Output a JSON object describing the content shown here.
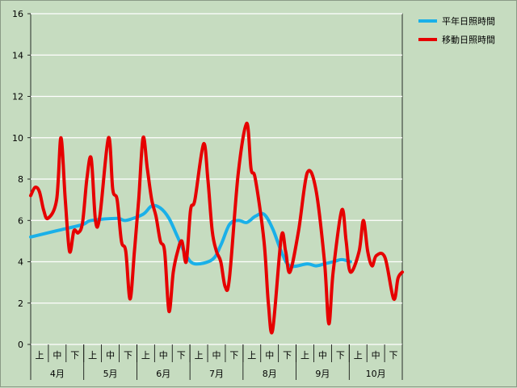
{
  "chart_data": {
    "type": "line",
    "ylim": [
      0,
      16
    ],
    "yticks": [
      "0",
      "2",
      "4",
      "6",
      "8",
      "10",
      "12",
      "14",
      "16"
    ],
    "xticks_top": [
      "上",
      "中",
      "下",
      "上",
      "中",
      "下",
      "上",
      "中",
      "下",
      "上",
      "中",
      "下",
      "上",
      "中",
      "下",
      "上",
      "中",
      "下",
      "上",
      "中",
      "下"
    ],
    "xticks_bottom": [
      "4月",
      "5月",
      "6月",
      "7月",
      "8月",
      "9月",
      "10月"
    ],
    "grid": true,
    "legend_position": "top-right",
    "series": [
      {
        "name": "平年日照時間",
        "color": "#1ab0e8",
        "points": [
          [
            0,
            5.2
          ],
          [
            3,
            5.5
          ],
          [
            6,
            5.8
          ],
          [
            7,
            6.0
          ],
          [
            10,
            6.1
          ],
          [
            11,
            6.0
          ],
          [
            13,
            6.3
          ],
          [
            14,
            6.7
          ],
          [
            15,
            6.6
          ],
          [
            16,
            6.1
          ],
          [
            17,
            5.2
          ],
          [
            18,
            4.3
          ],
          [
            19,
            3.9
          ],
          [
            21,
            4.1
          ],
          [
            22,
            4.8
          ],
          [
            23,
            5.8
          ],
          [
            24,
            6.0
          ],
          [
            25,
            5.9
          ],
          [
            26,
            6.2
          ],
          [
            27,
            6.3
          ],
          [
            28,
            5.6
          ],
          [
            29,
            4.5
          ],
          [
            30,
            3.8
          ],
          [
            32,
            3.9
          ],
          [
            33,
            3.8
          ],
          [
            34,
            3.9
          ],
          [
            35,
            4.0
          ],
          [
            36,
            4.1
          ],
          [
            37,
            4.0
          ]
        ]
      },
      {
        "name": "移動日照時間",
        "color": "#e60000",
        "points": [
          [
            0,
            7.2
          ],
          [
            0.5,
            7.6
          ],
          [
            1,
            7.4
          ],
          [
            1.5,
            6.5
          ],
          [
            2,
            6.1
          ],
          [
            3,
            7.0
          ],
          [
            3.5,
            10.0
          ],
          [
            4,
            7.0
          ],
          [
            4.5,
            4.5
          ],
          [
            5,
            5.5
          ],
          [
            5.5,
            5.4
          ],
          [
            6,
            5.9
          ],
          [
            6.5,
            8.0
          ],
          [
            7,
            9.0
          ],
          [
            7.5,
            6.0
          ],
          [
            8,
            6.2
          ],
          [
            9,
            10.0
          ],
          [
            9.5,
            7.5
          ],
          [
            10,
            7.0
          ],
          [
            10.5,
            5.0
          ],
          [
            11,
            4.5
          ],
          [
            11.5,
            2.2
          ],
          [
            12,
            4.5
          ],
          [
            12.5,
            7.0
          ],
          [
            13,
            10.0
          ],
          [
            13.5,
            8.5
          ],
          [
            14,
            7.0
          ],
          [
            14.5,
            6.2
          ],
          [
            15,
            5.0
          ],
          [
            15.5,
            4.5
          ],
          [
            16,
            1.6
          ],
          [
            16.5,
            3.5
          ],
          [
            17,
            4.5
          ],
          [
            17.5,
            5.0
          ],
          [
            18,
            4.0
          ],
          [
            18.5,
            6.5
          ],
          [
            19,
            7.0
          ],
          [
            20,
            9.7
          ],
          [
            20.5,
            8.0
          ],
          [
            21,
            5.5
          ],
          [
            21.5,
            4.5
          ],
          [
            22,
            4.0
          ],
          [
            22.5,
            2.8
          ],
          [
            23,
            3.2
          ],
          [
            24,
            8.2
          ],
          [
            25,
            10.7
          ],
          [
            25.5,
            8.5
          ],
          [
            26,
            8.0
          ],
          [
            27,
            5.0
          ],
          [
            27.5,
            2.0
          ],
          [
            28,
            0.7
          ],
          [
            29,
            5.2
          ],
          [
            29.5,
            4.5
          ],
          [
            30,
            3.5
          ],
          [
            31,
            5.5
          ],
          [
            32,
            8.3
          ],
          [
            33,
            7.5
          ],
          [
            34,
            4.0
          ],
          [
            34.5,
            1.0
          ],
          [
            35,
            3.5
          ],
          [
            36,
            6.5
          ],
          [
            36.5,
            5.0
          ],
          [
            37,
            3.5
          ],
          [
            38,
            4.5
          ],
          [
            38.5,
            6.0
          ],
          [
            39,
            4.5
          ],
          [
            39.5,
            3.8
          ],
          [
            40,
            4.3
          ],
          [
            41,
            4.2
          ],
          [
            42,
            2.2
          ],
          [
            42.5,
            3.2
          ],
          [
            43,
            3.5
          ]
        ]
      }
    ]
  }
}
